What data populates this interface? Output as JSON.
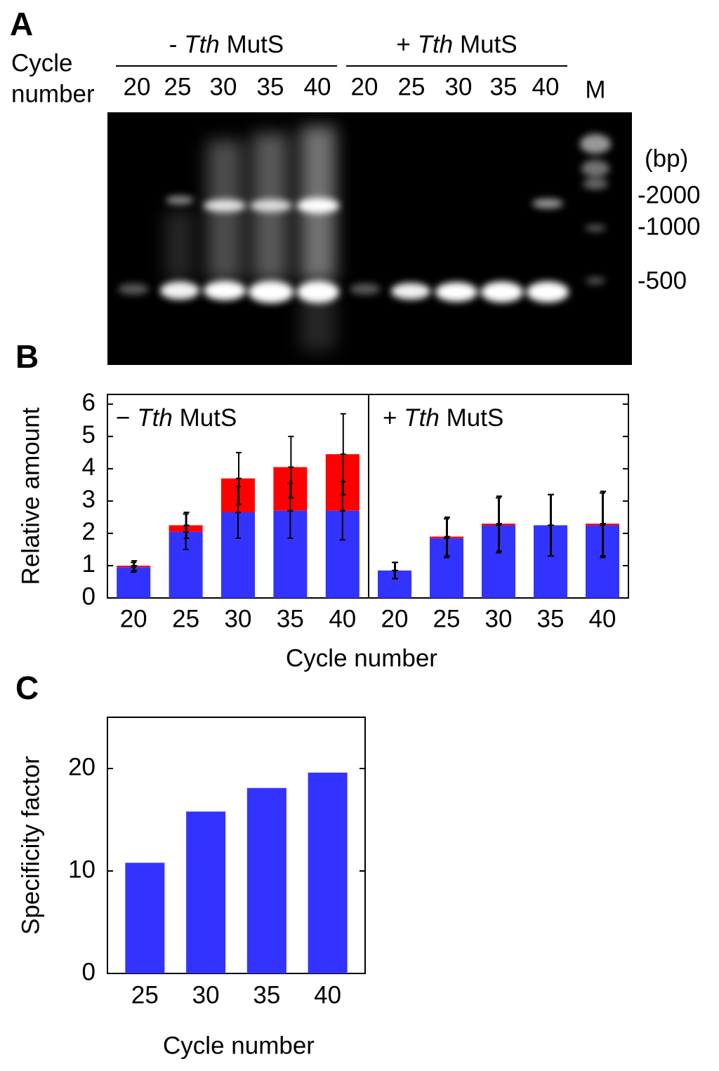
{
  "gel": {
    "panel": "A",
    "row_label": [
      "Cycle",
      "number"
    ],
    "groups": [
      {
        "sign": "-",
        "species": "Tth",
        "protein": "MutS",
        "lanes": [
          20,
          25,
          30,
          35,
          40
        ]
      },
      {
        "sign": "+",
        "species": "Tth",
        "protein": "MutS",
        "lanes": [
          20,
          25,
          30,
          35,
          40
        ]
      }
    ],
    "marker_lane": "M",
    "marker_unit": "(bp)",
    "markers": [
      "-2000",
      "-1000",
      "-500"
    ]
  },
  "chart_data": [
    {
      "type": "stacked-bar",
      "panel": "B",
      "y_label": "Relative amount",
      "x_label": "Cycle number",
      "ylim": [
        0,
        6.3
      ],
      "yticks": [
        0,
        1,
        2,
        3,
        4,
        5,
        6
      ],
      "facets": [
        {
          "sign": "−",
          "species": "Tth",
          "protein": "MutS",
          "categories": [
            20,
            25,
            30,
            35,
            40
          ],
          "series": [
            {
              "color": "#3333ff",
              "values": [
                0.95,
                2.05,
                2.65,
                2.7,
                2.7
              ],
              "errors": [
                0.15,
                0.55,
                0.8,
                0.85,
                0.9
              ]
            },
            {
              "color": "#ff0000",
              "values": [
                0.05,
                0.2,
                1.05,
                1.35,
                1.75
              ],
              "errors": [
                0.15,
                0.4,
                0.8,
                0.95,
                1.25
              ]
            }
          ]
        },
        {
          "sign": "+",
          "species": "Tth",
          "protein": "MutS",
          "categories": [
            20,
            25,
            30,
            35,
            40
          ],
          "series": [
            {
              "color": "#3333ff",
              "values": [
                0.85,
                1.85,
                2.25,
                2.25,
                2.25
              ],
              "errors": [
                0.25,
                0.6,
                0.85,
                0.95,
                1.0
              ]
            },
            {
              "color": "#ff0000",
              "values": [
                0,
                0.05,
                0.05,
                0,
                0.05
              ],
              "errors": [
                0.25,
                0.6,
                0.85,
                0.95,
                1.0
              ]
            }
          ]
        }
      ]
    },
    {
      "type": "bar",
      "panel": "C",
      "y_label": "Specificity factor",
      "x_label": "Cycle number",
      "categories": [
        25,
        30,
        35,
        40
      ],
      "values": [
        10.8,
        15.8,
        18.1,
        19.6
      ],
      "color": "#3333ff",
      "ylim": [
        0,
        25
      ],
      "yticks": [
        0,
        10,
        20
      ]
    }
  ]
}
